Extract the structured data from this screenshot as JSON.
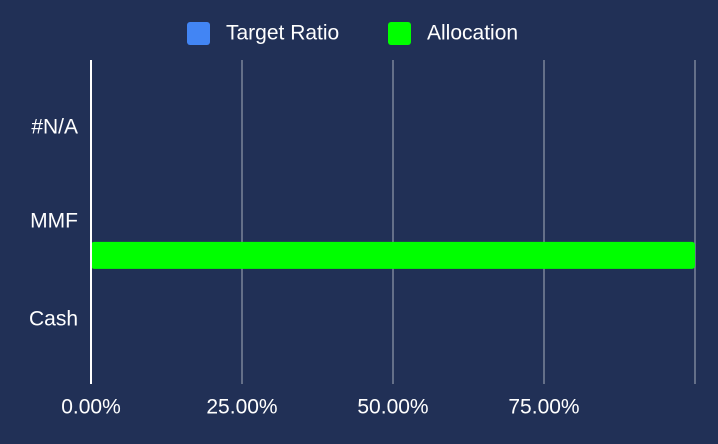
{
  "chart_data": {
    "type": "bar",
    "orientation": "horizontal",
    "categories": [
      "#N/A",
      "MMF",
      "Cash"
    ],
    "series": [
      {
        "name": "Target Ratio",
        "color": "#4285f4",
        "values": [
          0,
          0,
          0
        ]
      },
      {
        "name": "Allocation",
        "color": "#00ff00",
        "values": [
          0,
          100,
          0
        ]
      }
    ],
    "xlim": [
      0,
      100
    ],
    "xticks": [
      {
        "value": 0,
        "label": "0.00%"
      },
      {
        "value": 25,
        "label": "25.00%"
      },
      {
        "value": 50,
        "label": "50.00%"
      },
      {
        "value": 75,
        "label": "75.00%"
      }
    ],
    "grid": true,
    "legend": "top"
  }
}
